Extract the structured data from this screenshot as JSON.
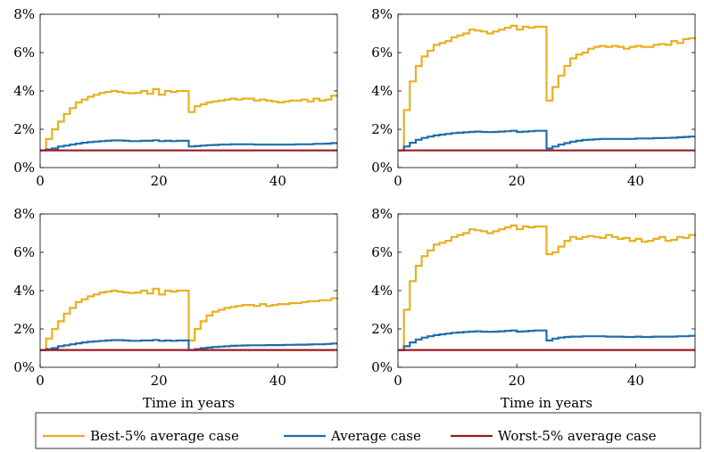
{
  "colors": {
    "best": "#e8b021",
    "average": "#1f6ead",
    "worst": "#9b1b21"
  },
  "legend": {
    "entries": [
      {
        "label": "Best-5% average case",
        "color": "#e8b021"
      },
      {
        "label": "Average case",
        "color": "#1f6ead"
      },
      {
        "label": "Worst-5% average case",
        "color": "#9b1b21"
      }
    ]
  },
  "chart_data": [
    {
      "type": "line",
      "title": "",
      "xlabel": "",
      "ylabel": "",
      "xlim": [
        0,
        50
      ],
      "ylim": [
        0,
        8
      ],
      "xticks": [
        0,
        20,
        40
      ],
      "yticks": [
        "0%",
        "2%",
        "4%",
        "6%",
        "8%"
      ],
      "grid": false,
      "series": [
        {
          "name": "Best-5% average case",
          "color": "#e8b021",
          "x": [
            0,
            1,
            2,
            3,
            4,
            5,
            6,
            7,
            8,
            9,
            10,
            11,
            12,
            13,
            14,
            15,
            16,
            17,
            18,
            19,
            20,
            21,
            22,
            23,
            24,
            25,
            26,
            27,
            28,
            29,
            30,
            31,
            32,
            33,
            34,
            35,
            36,
            37,
            38,
            39,
            40,
            41,
            42,
            43,
            44,
            45,
            46,
            47,
            48,
            49,
            50
          ],
          "y": [
            0.9,
            1.5,
            2.0,
            2.4,
            2.8,
            3.1,
            3.4,
            3.55,
            3.7,
            3.8,
            3.9,
            3.95,
            4.0,
            3.95,
            3.9,
            3.88,
            3.9,
            4.0,
            3.85,
            4.1,
            3.8,
            4.0,
            3.95,
            4.0,
            4.0,
            2.9,
            3.2,
            3.3,
            3.4,
            3.45,
            3.5,
            3.55,
            3.6,
            3.55,
            3.6,
            3.6,
            3.5,
            3.55,
            3.5,
            3.45,
            3.4,
            3.45,
            3.5,
            3.5,
            3.55,
            3.45,
            3.6,
            3.5,
            3.55,
            3.75,
            3.7
          ]
        },
        {
          "name": "Average case",
          "color": "#1f6ead",
          "x": [
            0,
            1,
            2,
            3,
            4,
            5,
            6,
            7,
            8,
            9,
            10,
            11,
            12,
            13,
            14,
            15,
            16,
            17,
            18,
            19,
            20,
            21,
            22,
            23,
            24,
            25,
            26,
            27,
            28,
            29,
            30,
            31,
            32,
            33,
            34,
            35,
            36,
            37,
            38,
            39,
            40,
            41,
            42,
            43,
            44,
            45,
            46,
            47,
            48,
            49,
            50
          ],
          "y": [
            0.9,
            0.95,
            1.0,
            1.1,
            1.15,
            1.2,
            1.25,
            1.3,
            1.33,
            1.36,
            1.38,
            1.4,
            1.42,
            1.42,
            1.4,
            1.38,
            1.38,
            1.4,
            1.4,
            1.43,
            1.38,
            1.4,
            1.38,
            1.4,
            1.4,
            1.1,
            1.12,
            1.15,
            1.17,
            1.18,
            1.2,
            1.2,
            1.22,
            1.22,
            1.22,
            1.22,
            1.2,
            1.2,
            1.2,
            1.2,
            1.2,
            1.2,
            1.2,
            1.22,
            1.22,
            1.22,
            1.24,
            1.24,
            1.25,
            1.28,
            1.28
          ]
        },
        {
          "name": "Worst-5% average case",
          "color": "#9b1b21",
          "x": [
            0,
            50
          ],
          "y": [
            0.9,
            0.9
          ]
        }
      ]
    },
    {
      "type": "line",
      "title": "",
      "xlabel": "",
      "ylabel": "",
      "xlim": [
        0,
        50
      ],
      "ylim": [
        0,
        8
      ],
      "xticks": [
        0,
        20,
        40
      ],
      "yticks": [
        "0%",
        "2%",
        "4%",
        "6%",
        "8%"
      ],
      "grid": false,
      "series": [
        {
          "name": "Best-5% average case",
          "color": "#e8b021",
          "x": [
            0,
            1,
            2,
            3,
            4,
            5,
            6,
            7,
            8,
            9,
            10,
            11,
            12,
            13,
            14,
            15,
            16,
            17,
            18,
            19,
            20,
            21,
            22,
            23,
            24,
            25,
            26,
            27,
            28,
            29,
            30,
            31,
            32,
            33,
            34,
            35,
            36,
            37,
            38,
            39,
            40,
            41,
            42,
            43,
            44,
            45,
            46,
            47,
            48,
            49,
            50
          ],
          "y": [
            0.9,
            3.0,
            4.5,
            5.3,
            5.8,
            6.1,
            6.4,
            6.5,
            6.6,
            6.8,
            6.9,
            7.0,
            7.2,
            7.15,
            7.1,
            7.0,
            7.1,
            7.2,
            7.3,
            7.4,
            7.2,
            7.35,
            7.3,
            7.35,
            7.35,
            3.5,
            4.2,
            4.8,
            5.3,
            5.7,
            5.9,
            6.0,
            6.2,
            6.3,
            6.35,
            6.3,
            6.35,
            6.3,
            6.2,
            6.3,
            6.35,
            6.3,
            6.3,
            6.4,
            6.45,
            6.4,
            6.6,
            6.5,
            6.7,
            6.75,
            6.7
          ]
        },
        {
          "name": "Average case",
          "color": "#1f6ead",
          "x": [
            0,
            1,
            2,
            3,
            4,
            5,
            6,
            7,
            8,
            9,
            10,
            11,
            12,
            13,
            14,
            15,
            16,
            17,
            18,
            19,
            20,
            21,
            22,
            23,
            24,
            25,
            26,
            27,
            28,
            29,
            30,
            31,
            32,
            33,
            34,
            35,
            36,
            37,
            38,
            39,
            40,
            41,
            42,
            43,
            44,
            45,
            46,
            47,
            48,
            49,
            50
          ],
          "y": [
            0.9,
            1.1,
            1.3,
            1.45,
            1.55,
            1.62,
            1.68,
            1.72,
            1.76,
            1.8,
            1.82,
            1.84,
            1.86,
            1.88,
            1.86,
            1.85,
            1.86,
            1.88,
            1.9,
            1.92,
            1.86,
            1.88,
            1.9,
            1.92,
            1.92,
            1.0,
            1.1,
            1.2,
            1.28,
            1.35,
            1.4,
            1.44,
            1.46,
            1.48,
            1.5,
            1.5,
            1.5,
            1.5,
            1.5,
            1.5,
            1.52,
            1.52,
            1.52,
            1.54,
            1.54,
            1.55,
            1.56,
            1.58,
            1.6,
            1.62,
            1.62
          ]
        },
        {
          "name": "Worst-5% average case",
          "color": "#9b1b21",
          "x": [
            0,
            50
          ],
          "y": [
            0.9,
            0.9
          ]
        }
      ]
    },
    {
      "type": "line",
      "title": "",
      "xlabel": "Time in years",
      "ylabel": "",
      "xlim": [
        0,
        50
      ],
      "ylim": [
        0,
        8
      ],
      "xticks": [
        0,
        20,
        40
      ],
      "yticks": [
        "0%",
        "2%",
        "4%",
        "6%",
        "8%"
      ],
      "grid": false,
      "series": [
        {
          "name": "Best-5% average case",
          "color": "#e8b021",
          "x": [
            0,
            1,
            2,
            3,
            4,
            5,
            6,
            7,
            8,
            9,
            10,
            11,
            12,
            13,
            14,
            15,
            16,
            17,
            18,
            19,
            20,
            21,
            22,
            23,
            24,
            25,
            26,
            27,
            28,
            29,
            30,
            31,
            32,
            33,
            34,
            35,
            36,
            37,
            38,
            39,
            40,
            41,
            42,
            43,
            44,
            45,
            46,
            47,
            48,
            49,
            50
          ],
          "y": [
            0.9,
            1.5,
            2.0,
            2.4,
            2.8,
            3.1,
            3.4,
            3.55,
            3.7,
            3.8,
            3.9,
            3.95,
            4.0,
            3.95,
            3.9,
            3.88,
            3.9,
            4.0,
            3.85,
            4.1,
            3.8,
            4.0,
            3.95,
            4.0,
            4.0,
            1.4,
            2.0,
            2.4,
            2.7,
            2.9,
            3.0,
            3.1,
            3.15,
            3.2,
            3.25,
            3.25,
            3.2,
            3.3,
            3.2,
            3.25,
            3.3,
            3.3,
            3.35,
            3.35,
            3.4,
            3.45,
            3.45,
            3.5,
            3.5,
            3.6,
            3.55
          ]
        },
        {
          "name": "Average case",
          "color": "#1f6ead",
          "x": [
            0,
            1,
            2,
            3,
            4,
            5,
            6,
            7,
            8,
            9,
            10,
            11,
            12,
            13,
            14,
            15,
            16,
            17,
            18,
            19,
            20,
            21,
            22,
            23,
            24,
            25,
            26,
            27,
            28,
            29,
            30,
            31,
            32,
            33,
            34,
            35,
            36,
            37,
            38,
            39,
            40,
            41,
            42,
            43,
            44,
            45,
            46,
            47,
            48,
            49,
            50
          ],
          "y": [
            0.9,
            0.95,
            1.0,
            1.1,
            1.15,
            1.2,
            1.25,
            1.3,
            1.33,
            1.36,
            1.38,
            1.4,
            1.42,
            1.42,
            1.4,
            1.38,
            1.38,
            1.4,
            1.4,
            1.43,
            1.38,
            1.4,
            1.38,
            1.4,
            1.4,
            0.9,
            0.95,
            1.0,
            1.03,
            1.06,
            1.08,
            1.1,
            1.12,
            1.13,
            1.14,
            1.15,
            1.15,
            1.15,
            1.16,
            1.16,
            1.16,
            1.17,
            1.17,
            1.18,
            1.18,
            1.19,
            1.2,
            1.2,
            1.22,
            1.24,
            1.24
          ]
        },
        {
          "name": "Worst-5% average case",
          "color": "#9b1b21",
          "x": [
            0,
            50
          ],
          "y": [
            0.9,
            0.9
          ]
        }
      ]
    },
    {
      "type": "line",
      "title": "",
      "xlabel": "Time in years",
      "ylabel": "",
      "xlim": [
        0,
        50
      ],
      "ylim": [
        0,
        8
      ],
      "xticks": [
        0,
        20,
        40
      ],
      "yticks": [
        "0%",
        "2%",
        "4%",
        "6%",
        "8%"
      ],
      "grid": false,
      "series": [
        {
          "name": "Best-5% average case",
          "color": "#e8b021",
          "x": [
            0,
            1,
            2,
            3,
            4,
            5,
            6,
            7,
            8,
            9,
            10,
            11,
            12,
            13,
            14,
            15,
            16,
            17,
            18,
            19,
            20,
            21,
            22,
            23,
            24,
            25,
            26,
            27,
            28,
            29,
            30,
            31,
            32,
            33,
            34,
            35,
            36,
            37,
            38,
            39,
            40,
            41,
            42,
            43,
            44,
            45,
            46,
            47,
            48,
            49,
            50
          ],
          "y": [
            0.9,
            3.0,
            4.5,
            5.3,
            5.8,
            6.1,
            6.4,
            6.5,
            6.6,
            6.8,
            6.9,
            7.0,
            7.2,
            7.15,
            7.1,
            7.0,
            7.1,
            7.2,
            7.3,
            7.4,
            7.2,
            7.35,
            7.3,
            7.35,
            7.35,
            5.9,
            6.0,
            6.3,
            6.6,
            6.8,
            6.7,
            6.8,
            6.85,
            6.8,
            6.75,
            6.9,
            6.8,
            6.7,
            6.75,
            6.6,
            6.7,
            6.55,
            6.6,
            6.7,
            6.8,
            6.6,
            6.65,
            6.8,
            6.75,
            6.9,
            6.85
          ]
        },
        {
          "name": "Average case",
          "color": "#1f6ead",
          "x": [
            0,
            1,
            2,
            3,
            4,
            5,
            6,
            7,
            8,
            9,
            10,
            11,
            12,
            13,
            14,
            15,
            16,
            17,
            18,
            19,
            20,
            21,
            22,
            23,
            24,
            25,
            26,
            27,
            28,
            29,
            30,
            31,
            32,
            33,
            34,
            35,
            36,
            37,
            38,
            39,
            40,
            41,
            42,
            43,
            44,
            45,
            46,
            47,
            48,
            49,
            50
          ],
          "y": [
            0.9,
            1.1,
            1.3,
            1.45,
            1.55,
            1.62,
            1.68,
            1.72,
            1.76,
            1.8,
            1.82,
            1.84,
            1.86,
            1.88,
            1.86,
            1.85,
            1.86,
            1.88,
            1.9,
            1.92,
            1.86,
            1.88,
            1.9,
            1.92,
            1.92,
            1.4,
            1.5,
            1.55,
            1.58,
            1.6,
            1.6,
            1.62,
            1.62,
            1.62,
            1.62,
            1.6,
            1.6,
            1.6,
            1.58,
            1.58,
            1.6,
            1.58,
            1.58,
            1.6,
            1.6,
            1.6,
            1.6,
            1.62,
            1.62,
            1.64,
            1.64
          ]
        },
        {
          "name": "Worst-5% average case",
          "color": "#9b1b21",
          "x": [
            0,
            50
          ],
          "y": [
            0.9,
            0.9
          ]
        }
      ]
    }
  ]
}
